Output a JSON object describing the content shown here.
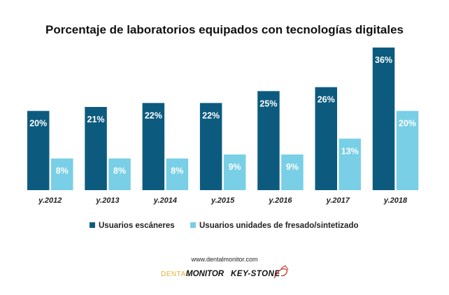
{
  "chart_data": {
    "type": "bar",
    "title": "Porcentaje de laboratorios equipados con tecnologías digitales",
    "categories": [
      "y.2012",
      "y.2013",
      "y.2014",
      "y.2015",
      "y.2016",
      "y.2017",
      "y.2018"
    ],
    "series": [
      {
        "name": "Usuarios escáneres",
        "color": "#0c5b7e",
        "values": [
          20,
          21,
          22,
          22,
          25,
          26,
          36
        ],
        "labels": [
          "20%",
          "21%",
          "22%",
          "22%",
          "25%",
          "26%",
          "36%"
        ]
      },
      {
        "name": "Usuarios unidades de fresado/sintetizado",
        "color": "#78cfe6",
        "values": [
          8,
          8,
          8,
          9,
          9,
          13,
          20
        ],
        "labels": [
          "8%",
          "8%",
          "8%",
          "9%",
          "9%",
          "13%",
          "20%"
        ]
      }
    ],
    "ylim": [
      0,
      36
    ],
    "grid": false,
    "legend_position": "bottom"
  },
  "footer": {
    "website": "www.dentalmonitor.com",
    "logo_dental": "DENTAL",
    "logo_monitor": "MONITOR",
    "logo_keystone": "KEY-STONE"
  }
}
